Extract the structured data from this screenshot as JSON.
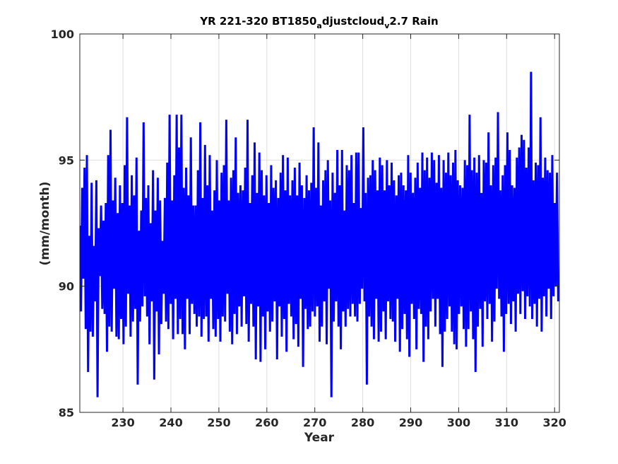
{
  "chart_data": {
    "type": "line",
    "title": {
      "part1": "YR 221-320 BT1850",
      "sub1": "a",
      "part2": "djustcloud",
      "sub2": "v",
      "part3": "2.7 Rain"
    },
    "xlabel": "Year",
    "ylabel": "(mm/month)",
    "xlim": [
      221,
      321
    ],
    "ylim": [
      85,
      100
    ],
    "xticks": [
      230,
      240,
      250,
      260,
      270,
      280,
      290,
      300,
      310,
      320
    ],
    "yticks": [
      85,
      90,
      95,
      100
    ],
    "grid": true,
    "line_color": "#0000ff",
    "series": [
      {
        "values": [
          92.4,
          89.0,
          93.9,
          90.3,
          94.7,
          88.3,
          95.2,
          86.6,
          92.0,
          88.2,
          94.1,
          88.0,
          91.6,
          89.4,
          94.2,
          85.6,
          92.3,
          90.4,
          93.2,
          89.1,
          92.6,
          88.9,
          93.3,
          87.4,
          95.2,
          88.4,
          96.2,
          88.2,
          93.4,
          89.9,
          94.3,
          88.0,
          92.9,
          87.9,
          94.0,
          88.7,
          93.3,
          87.7,
          94.8,
          88.4,
          96.7,
          89.7,
          93.2,
          88.0,
          94.4,
          88.6,
          93.6,
          89.1,
          95.1,
          86.1,
          92.2,
          88.6,
          93.0,
          89.2,
          96.5,
          89.6,
          93.5,
          88.8,
          94.0,
          87.7,
          92.5,
          89.4,
          94.6,
          86.3,
          93.0,
          89.0,
          94.3,
          87.3,
          93.4,
          88.5,
          91.8,
          89.7,
          93.5,
          88.6,
          94.9,
          88.3,
          96.8,
          89.3,
          93.4,
          87.9,
          94.4,
          89.5,
          96.8,
          88.1,
          95.5,
          88.7,
          96.8,
          88.1,
          93.9,
          87.5,
          94.7,
          89.5,
          93.6,
          88.1,
          95.9,
          89.3,
          93.2,
          88.9,
          93.2,
          88.4,
          94.6,
          88.8,
          96.5,
          88.0,
          93.5,
          88.7,
          95.6,
          88.8,
          94.0,
          87.8,
          95.2,
          89.5,
          93.0,
          88.3,
          93.8,
          88.0,
          95.0,
          88.7,
          93.4,
          87.8,
          94.5,
          88.8,
          94.8,
          88.6,
          96.6,
          89.7,
          93.4,
          88.2,
          94.3,
          87.7,
          94.6,
          88.9,
          95.9,
          88.1,
          93.7,
          89.2,
          94.0,
          88.4,
          93.8,
          89.6,
          94.7,
          88.5,
          96.6,
          87.8,
          93.3,
          89.3,
          94.4,
          88.4,
          95.7,
          87.1,
          93.7,
          89.2,
          95.3,
          87.0,
          94.6,
          88.8,
          93.6,
          87.5,
          94.4,
          89.0,
          93.3,
          88.2,
          94.8,
          88.6,
          93.9,
          89.4,
          94.2,
          87.1,
          93.5,
          89.2,
          94.5,
          88.0,
          95.2,
          88.7,
          93.8,
          87.4,
          95.1,
          89.3,
          93.6,
          88.8,
          94.2,
          87.9,
          94.7,
          88.5,
          93.6,
          87.6,
          94.9,
          89.5,
          94.0,
          86.8,
          93.5,
          89.1,
          94.4,
          88.3,
          93.8,
          88.4,
          94.1,
          89.0,
          96.3,
          88.8,
          93.9,
          89.2,
          95.7,
          87.8,
          93.2,
          88.4,
          94.2,
          89.4,
          94.6,
          87.7,
          95.0,
          89.9,
          93.4,
          85.6,
          94.5,
          88.6,
          93.7,
          89.4,
          95.4,
          88.4,
          94.0,
          87.5,
          95.4,
          89.0,
          93.0,
          88.4,
          94.8,
          89.1,
          94.6,
          88.8,
          95.2,
          89.3,
          93.3,
          88.8,
          95.3,
          88.6,
          95.3,
          89.3,
          93.1,
          89.9,
          96.3,
          89.4,
          93.7,
          86.1,
          94.3,
          88.8,
          94.4,
          88.4,
          95.0,
          87.9,
          94.6,
          89.5,
          93.8,
          87.8,
          95.1,
          88.2,
          94.8,
          89.0,
          93.8,
          87.9,
          95.0,
          89.4,
          94.0,
          88.7,
          94.9,
          88.6,
          94.2,
          87.8,
          93.6,
          89.5,
          94.4,
          87.4,
          94.5,
          88.3,
          94.0,
          88.9,
          93.8,
          87.9,
          95.2,
          87.2,
          94.5,
          89.3,
          93.7,
          88.7,
          94.3,
          87.5,
          94.9,
          89.1,
          93.9,
          88.9,
          95.3,
          87.0,
          94.6,
          88.4,
          95.1,
          87.9,
          94.3,
          89.0,
          95.3,
          89.5,
          95.0,
          88.4,
          94.1,
          89.5,
          95.2,
          88.1,
          93.9,
          86.8,
          95.0,
          88.2,
          94.5,
          88.7,
          95.3,
          89.2,
          94.4,
          88.2,
          94.9,
          87.7,
          95.4,
          87.5,
          94.2,
          88.9,
          94.0,
          89.2,
          93.9,
          88.3,
          95.0,
          87.6,
          94.8,
          88.3,
          96.8,
          89.0,
          94.6,
          87.9,
          95.1,
          86.6,
          94.5,
          88.4,
          95.2,
          89.1,
          93.7,
          87.6,
          95.0,
          89.4,
          94.9,
          88.7,
          96.1,
          89.3,
          94.0,
          87.8,
          94.8,
          88.6,
          95.1,
          89.9,
          96.9,
          89.5,
          93.8,
          88.8,
          94.4,
          87.4,
          94.8,
          88.9,
          96.1,
          89.3,
          95.4,
          88.5,
          94.0,
          89.4,
          93.9,
          88.2,
          95.1,
          89.7,
          95.5,
          88.9,
          96.0,
          89.8,
          95.8,
          88.7,
          94.7,
          89.6,
          95.5,
          89.2,
          98.5,
          88.7,
          94.2,
          89.3,
          94.9,
          88.4,
          94.8,
          89.5,
          96.7,
          88.2,
          94.3,
          89.6,
          95.1,
          88.8,
          94.6,
          89.9,
          94.5,
          88.7,
          95.2,
          89.6,
          93.3,
          90.0,
          94.5,
          89.4
        ],
        "style": "solid",
        "color": "#0000ff"
      }
    ]
  }
}
